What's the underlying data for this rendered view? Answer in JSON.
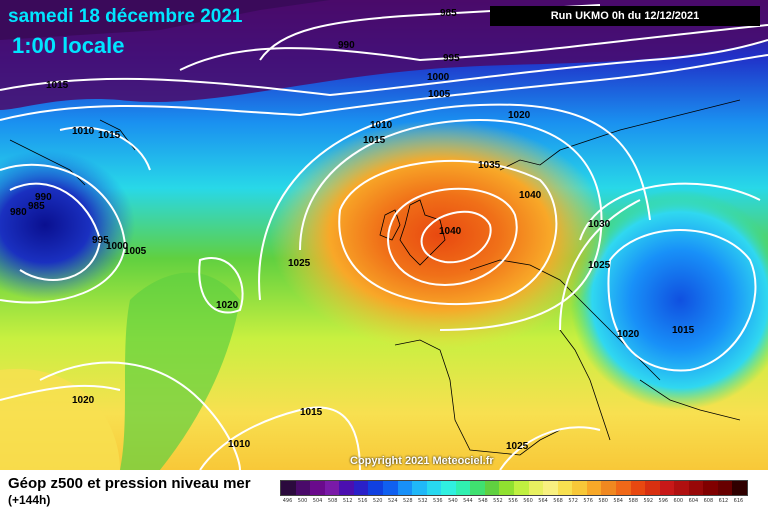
{
  "header": {
    "date": "samedi 18 décembre 2021",
    "time": "1:00 locale",
    "run": "Run UKMO 0h du 12/12/2021"
  },
  "map": {
    "isobar_labels": [
      "985",
      "990",
      "995",
      "1000",
      "1005",
      "1010",
      "1015",
      "1015",
      "1010",
      "1015",
      "1020",
      "1035",
      "1040",
      "1040",
      "1030",
      "1025",
      "1025",
      "1020",
      "1015",
      "990",
      "985",
      "980",
      "995",
      "1000",
      "1005",
      "1025",
      "1020",
      "1020",
      "1015",
      "1010",
      "1025"
    ],
    "colors": {
      "low": "#4a0a6a",
      "mid": "#1cd0f0",
      "high": "#f07010",
      "isobar": "#ffffff"
    }
  },
  "copyright": "Copyright 2021 Meteociel.fr",
  "footer": {
    "title": "Géop z500 et pression niveau mer",
    "subtitle": "(+144h)"
  },
  "scale": {
    "colors": [
      "#2b0a3d",
      "#4a0a6a",
      "#6a0a8c",
      "#7a1aa8",
      "#4b0fb0",
      "#2a20c8",
      "#1040e0",
      "#1060f0",
      "#1890f8",
      "#20b8f8",
      "#28d8f0",
      "#30f0e0",
      "#30f0b0",
      "#40e070",
      "#60d040",
      "#90e030",
      "#c0f040",
      "#e8f060",
      "#f8f080",
      "#f8e050",
      "#f8c838",
      "#f8a828",
      "#f08820",
      "#f06818",
      "#e84810",
      "#d83010",
      "#c81818",
      "#b01010",
      "#980808",
      "#800000",
      "#680000",
      "#300000"
    ],
    "labels": [
      "496",
      "500",
      "504",
      "508",
      "512",
      "516",
      "520",
      "524",
      "528",
      "532",
      "536",
      "540",
      "544",
      "548",
      "552",
      "556",
      "560",
      "564",
      "568",
      "572",
      "576",
      "580",
      "584",
      "588",
      "592",
      "596",
      "600",
      "604",
      "608",
      "612",
      "616"
    ]
  }
}
